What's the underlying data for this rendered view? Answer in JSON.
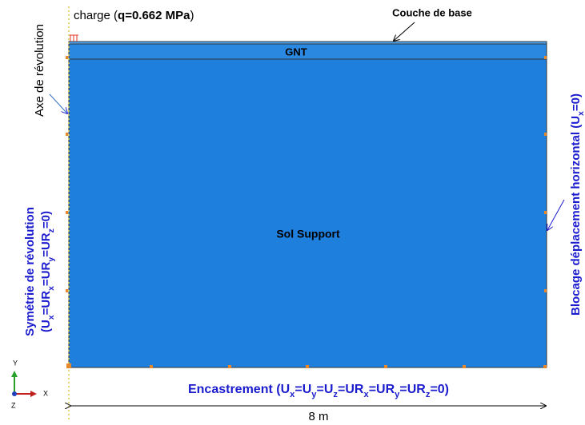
{
  "top": {
    "charge": [
      "charge (",
      "q=0.662 MPa",
      ")"
    ],
    "couche": "Couche de base"
  },
  "layers": {
    "gnt": "GNT",
    "sol": "Sol Support"
  },
  "left": {
    "axe": "Axe de révolution",
    "symetrie": "Symétrie de révolution",
    "conditions": [
      "(U",
      "x",
      "=UR",
      "x",
      "=UR",
      "y",
      "=UR",
      "z",
      "=0)"
    ]
  },
  "right": {
    "blocage": [
      "Blocage déplacement horizontal (U",
      "x",
      "=0)"
    ]
  },
  "bottom": {
    "encastrement": [
      "Encastrement (U",
      "x",
      "=U",
      "y",
      "=U",
      "z",
      "=UR",
      "x",
      "=UR",
      "y",
      "=UR",
      "z",
      "=0)"
    ],
    "width": "8 m"
  },
  "axes": {
    "y": "Y",
    "x": "X",
    "z": "Z"
  }
}
